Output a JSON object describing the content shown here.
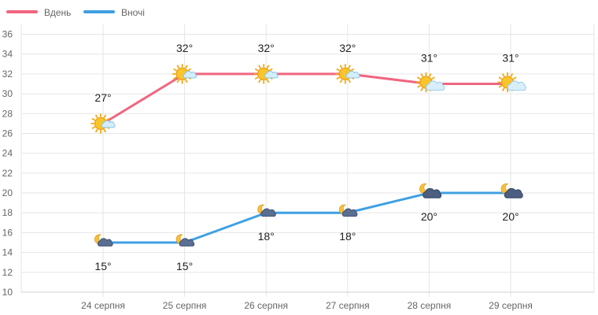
{
  "chart_data": {
    "type": "line",
    "categories": [
      "24 серпня",
      "25 серпня",
      "26 серпня",
      "27 серпня",
      "28 серпня",
      "29 серпня"
    ],
    "series": [
      {
        "name": "Вдень",
        "color": "#f0667f",
        "values": [
          27,
          32,
          32,
          32,
          31,
          31
        ],
        "labels": [
          "27°",
          "32°",
          "32°",
          "32°",
          "31°",
          "31°"
        ],
        "icons": [
          "sun-partly-cloudy-icon",
          "sun-partly-cloudy-icon",
          "sun-partly-cloudy-icon",
          "sun-partly-cloudy-icon",
          "sun-cloud-icon",
          "sun-cloud-icon"
        ]
      },
      {
        "name": "Вночі",
        "color": "#3fa0e3",
        "values": [
          15,
          15,
          18,
          18,
          20,
          20
        ],
        "labels": [
          "15°",
          "15°",
          "18°",
          "18°",
          "20°",
          "20°"
        ],
        "icons": [
          "moon-cloud-icon",
          "moon-cloud-icon",
          "moon-cloud-icon",
          "moon-cloud-icon",
          "moon-dark-cloud-icon",
          "moon-dark-cloud-icon"
        ]
      }
    ],
    "yticks": [
      "10",
      "12",
      "14",
      "16",
      "18",
      "20",
      "22",
      "24",
      "26",
      "28",
      "30",
      "32",
      "34",
      "36"
    ],
    "ylim": [
      10,
      37
    ],
    "grid": true,
    "legend": "top-left"
  }
}
